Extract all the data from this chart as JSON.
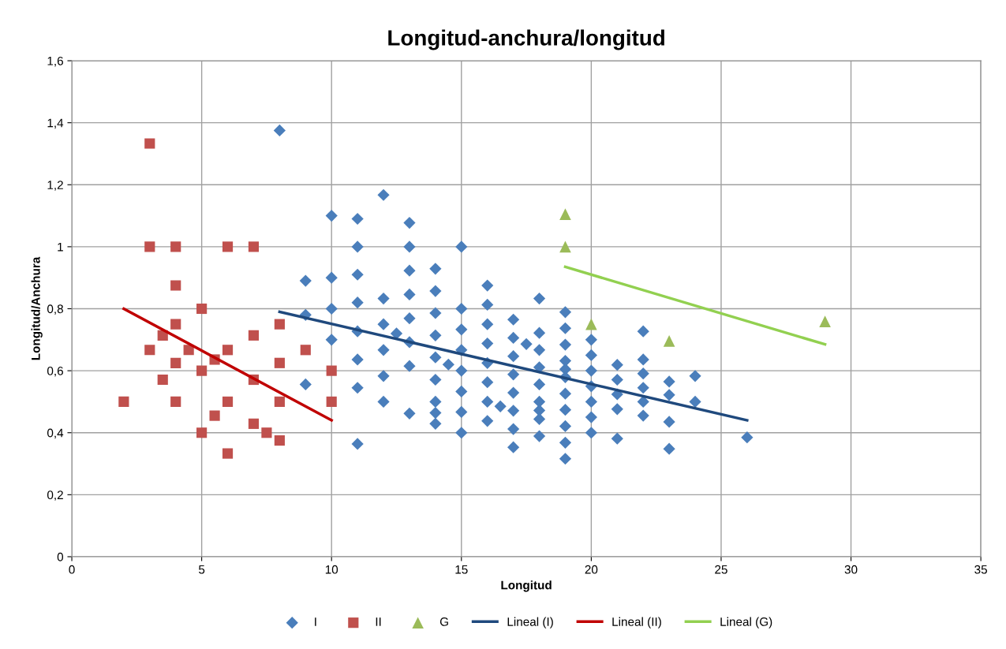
{
  "chart_data": {
    "type": "scatter",
    "title": "Longitud-anchura/longitud",
    "xlabel": "Longitud",
    "ylabel": "Longitud/Anchura",
    "xlim": [
      0,
      35
    ],
    "xticks": [
      0,
      5,
      10,
      15,
      20,
      25,
      30,
      35
    ],
    "ylim": [
      0,
      1.6
    ],
    "yticks": [
      0,
      {
        "value": 0.2,
        "label": "0,2"
      },
      {
        "value": 0.4,
        "label": "0,4"
      },
      {
        "value": 0.6,
        "label": "0,6"
      },
      {
        "value": 0.8,
        "label": "0,8"
      },
      1,
      {
        "value": 1.2,
        "label": "1,2"
      },
      {
        "value": 1.4,
        "label": "1,4"
      },
      {
        "value": 1.6,
        "label": "1,6"
      }
    ],
    "grid": true,
    "legend": "bottom",
    "series": [
      {
        "name": "I",
        "marker": "diamond",
        "color": "#4a7ebb",
        "x": [
          8,
          9,
          9,
          9,
          10,
          10,
          10,
          10,
          11,
          11,
          11,
          11,
          11,
          11,
          11,
          11,
          12,
          12,
          12,
          12,
          12,
          12,
          12.5,
          13,
          13,
          13,
          13,
          13,
          13,
          13,
          13,
          14,
          14,
          14,
          14,
          14,
          14,
          14,
          14,
          14,
          14.5,
          15,
          15,
          15,
          15,
          15,
          15,
          15,
          15,
          16,
          16,
          16,
          16,
          16,
          16,
          16,
          16,
          16.5,
          17,
          17,
          17,
          17,
          17,
          17,
          17,
          17,
          17.5,
          18,
          18,
          18,
          18,
          18,
          18,
          18,
          18,
          18,
          19,
          19,
          19,
          19,
          19,
          19,
          19,
          19,
          19,
          19,
          19,
          20,
          20,
          20,
          20,
          20,
          20,
          20,
          21,
          21,
          21,
          21,
          21,
          22,
          22,
          22,
          22,
          22,
          22,
          23,
          23,
          23,
          23,
          24,
          24,
          26
        ],
        "values": [
          1.375,
          0.89,
          0.78,
          0.556,
          1.1,
          0.9,
          0.8,
          0.7,
          1.09,
          1.0,
          0.91,
          0.82,
          0.727,
          0.636,
          0.545,
          0.364,
          1.167,
          0.833,
          0.75,
          0.667,
          0.583,
          0.5,
          0.72,
          1.077,
          1.0,
          0.923,
          0.846,
          0.769,
          0.692,
          0.615,
          0.462,
          0.929,
          0.857,
          0.786,
          0.714,
          0.643,
          0.571,
          0.5,
          0.464,
          0.429,
          0.62,
          1.0,
          0.8,
          0.733,
          0.667,
          0.6,
          0.533,
          0.467,
          0.4,
          0.875,
          0.813,
          0.75,
          0.688,
          0.625,
          0.563,
          0.5,
          0.438,
          0.485,
          0.765,
          0.706,
          0.647,
          0.588,
          0.529,
          0.471,
          0.412,
          0.353,
          0.686,
          0.833,
          0.722,
          0.667,
          0.611,
          0.556,
          0.5,
          0.472,
          0.444,
          0.389,
          0.789,
          0.737,
          0.684,
          0.632,
          0.605,
          0.579,
          0.526,
          0.474,
          0.421,
          0.368,
          0.316,
          0.7,
          0.65,
          0.6,
          0.55,
          0.5,
          0.45,
          0.4,
          0.619,
          0.571,
          0.524,
          0.476,
          0.381,
          0.727,
          0.636,
          0.591,
          0.545,
          0.5,
          0.455,
          0.565,
          0.522,
          0.435,
          0.348,
          0.583,
          0.5,
          0.385
        ]
      },
      {
        "name": "II",
        "marker": "square",
        "color": "#c0504d",
        "x": [
          2,
          3,
          3,
          3,
          3.5,
          3.5,
          4,
          4,
          4,
          4,
          4,
          4.5,
          5,
          5,
          5,
          5.5,
          5.5,
          6,
          6,
          6,
          6,
          7,
          7,
          7,
          7,
          7.5,
          8,
          8,
          8,
          8,
          9,
          10,
          10
        ],
        "values": [
          0.5,
          1.333,
          1.0,
          0.667,
          0.714,
          0.571,
          1.0,
          0.875,
          0.75,
          0.625,
          0.5,
          0.667,
          0.8,
          0.6,
          0.4,
          0.636,
          0.455,
          1.0,
          0.667,
          0.5,
          0.333,
          1.0,
          0.714,
          0.571,
          0.429,
          0.4,
          0.75,
          0.625,
          0.5,
          0.375,
          0.667,
          0.6,
          0.5
        ]
      },
      {
        "name": "G",
        "marker": "triangle",
        "color": "#9bbb59",
        "x": [
          19,
          19,
          20,
          23,
          29
        ],
        "values": [
          1.105,
          1.0,
          0.75,
          0.696,
          0.759
        ]
      },
      {
        "name": "Lineal (I)",
        "type": "line",
        "line_style": "solid",
        "color": "#1f497d",
        "x": [
          8,
          26
        ],
        "values": [
          0.79,
          0.44
        ]
      },
      {
        "name": "Lineal (II)",
        "type": "line",
        "line_style": "solid",
        "color": "#c00000",
        "x": [
          2,
          10
        ],
        "values": [
          0.8,
          0.44
        ]
      },
      {
        "name": "Lineal (G)",
        "type": "line",
        "line_style": "solid",
        "color": "#92d050",
        "x": [
          19,
          29
        ],
        "values": [
          0.935,
          0.685
        ]
      }
    ]
  }
}
